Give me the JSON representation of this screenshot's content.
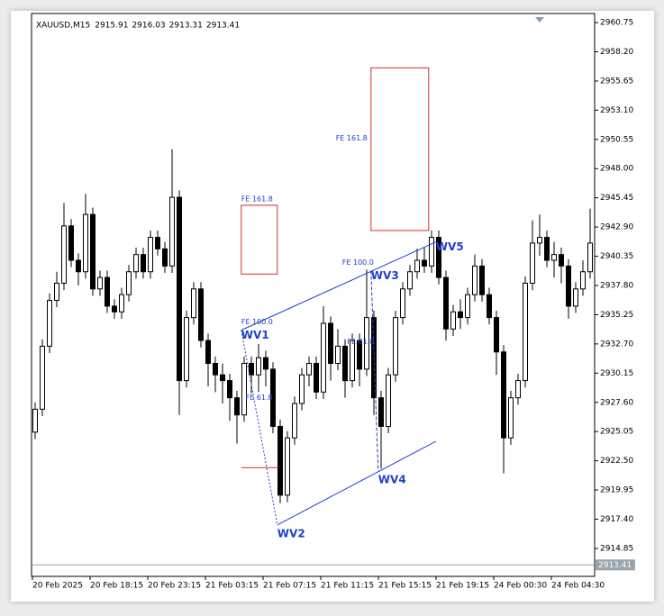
{
  "chart_data": {
    "type": "candlestick",
    "symbol": "XAUUSD,M15",
    "header_values": [
      2915.91,
      2916.03,
      2913.31,
      2913.41
    ],
    "categories": [
      "20 Feb 2025",
      null,
      null,
      null,
      null,
      null,
      null,
      null,
      "20 Feb 18:15",
      null,
      null,
      null,
      null,
      null,
      null,
      null,
      "20 Feb 23:15",
      null,
      null,
      null,
      null,
      null,
      null,
      null,
      "21 Feb 03:15",
      null,
      null,
      null,
      null,
      null,
      null,
      null,
      "21 Feb 07:15",
      null,
      null,
      null,
      null,
      null,
      null,
      null,
      "21 Feb 11:15",
      null,
      null,
      null,
      null,
      null,
      null,
      null,
      "21 Feb 15:15",
      null,
      null,
      null,
      null,
      null,
      null,
      null,
      "21 Feb 19:15",
      null,
      null,
      null,
      null,
      null,
      null,
      null,
      "24 Feb 00:30",
      null,
      null,
      null,
      null,
      null,
      null,
      null,
      "24 Feb 04:30",
      null,
      null,
      null,
      null,
      null
    ],
    "open": [
      2925.0,
      2927.0,
      2932.5,
      2936.5,
      2938.0,
      2943.0,
      2940.0,
      2939.0,
      2944.0,
      2937.5,
      2938.5,
      2936.0,
      2935.5,
      2937.0,
      2939.0,
      2940.5,
      2939.0,
      2942.0,
      2941.0,
      2939.5,
      2945.5,
      2929.5,
      2935.0,
      2937.5,
      2933.0,
      2931.0,
      2930.0,
      2929.5,
      2928.0,
      2926.5,
      2931.0,
      2930.0,
      2931.5,
      2930.5,
      2925.5,
      2919.5,
      2924.5,
      2927.5,
      2930.0,
      2931.0,
      2928.5,
      2934.5,
      2931.0,
      2932.5,
      2929.5,
      2933.0,
      2930.5,
      2935.0,
      2928.0,
      2925.5,
      2930.0,
      2935.0,
      2937.5,
      2939.0,
      2940.0,
      2939.5,
      2942.0,
      2938.5,
      2934.0,
      2935.5,
      2935.0,
      2937.0,
      2939.5,
      2937.0,
      2935.0,
      2932.0,
      2924.5,
      2928.0,
      2929.5,
      2938.0,
      2941.5,
      2942.0,
      2940.0,
      2940.5,
      2939.5,
      2936.0,
      2937.5,
      2939.0
    ],
    "high": [
      2927.6,
      2933.1,
      2937.1,
      2939.0,
      2945.0,
      2943.6,
      2940.6,
      2945.8,
      2944.6,
      2939.1,
      2939.1,
      2936.6,
      2937.6,
      2939.6,
      2941.1,
      2941.1,
      2942.6,
      2942.6,
      2941.6,
      2949.7,
      2946.1,
      2935.6,
      2938.1,
      2938.1,
      2933.6,
      2931.6,
      2931.0,
      2930.1,
      2928.6,
      2931.6,
      2931.6,
      2932.7,
      2932.1,
      2931.1,
      2926.1,
      2925.1,
      2928.1,
      2930.6,
      2931.6,
      2931.6,
      2936.0,
      2935.1,
      2934.0,
      2933.1,
      2933.6,
      2933.6,
      2939.2,
      2935.6,
      2928.6,
      2930.6,
      2935.6,
      2938.1,
      2939.6,
      2941.0,
      2941.1,
      2942.6,
      2942.6,
      2939.1,
      2936.1,
      2936.6,
      2937.6,
      2940.5,
      2940.1,
      2937.6,
      2935.6,
      2932.6,
      2928.6,
      2930.1,
      2938.6,
      2943.5,
      2944.0,
      2942.6,
      2941.6,
      2941.1,
      2940.1,
      2938.1,
      2940.0,
      2944.5
    ],
    "low": [
      2924.4,
      2926.4,
      2931.9,
      2935.9,
      2937.4,
      2939.4,
      2937.8,
      2938.4,
      2936.9,
      2936.9,
      2935.4,
      2934.9,
      2934.9,
      2936.4,
      2938.4,
      2938.4,
      2938.4,
      2940.4,
      2938.9,
      2938.9,
      2926.5,
      2928.9,
      2934.4,
      2932.4,
      2929.0,
      2928.5,
      2927.5,
      2926.0,
      2924.0,
      2925.9,
      2928.4,
      2928.5,
      2929.0,
      2924.9,
      2918.8,
      2918.9,
      2923.9,
      2926.9,
      2929.0,
      2927.9,
      2927.9,
      2929.5,
      2930.4,
      2928.0,
      2928.9,
      2929.0,
      2929.9,
      2926.5,
      2921.8,
      2924.9,
      2929.4,
      2934.4,
      2936.9,
      2938.4,
      2938.9,
      2938.9,
      2937.9,
      2933.0,
      2933.4,
      2934.0,
      2934.4,
      2936.4,
      2936.4,
      2934.4,
      2930.0,
      2921.4,
      2923.9,
      2927.4,
      2928.9,
      2937.4,
      2940.4,
      2939.4,
      2938.5,
      2938.0,
      2934.9,
      2935.4,
      2936.9,
      2938.4
    ],
    "close": [
      2927.0,
      2932.5,
      2936.5,
      2938.0,
      2943.0,
      2940.0,
      2939.0,
      2944.0,
      2937.5,
      2938.5,
      2936.0,
      2935.5,
      2937.0,
      2939.0,
      2940.5,
      2939.0,
      2942.0,
      2941.0,
      2939.5,
      2945.5,
      2929.5,
      2935.0,
      2937.5,
      2933.0,
      2931.0,
      2930.0,
      2929.5,
      2928.0,
      2926.5,
      2931.0,
      2930.0,
      2931.5,
      2930.5,
      2925.5,
      2919.5,
      2924.5,
      2927.5,
      2930.0,
      2931.0,
      2928.5,
      2934.5,
      2931.0,
      2932.5,
      2929.5,
      2933.0,
      2930.5,
      2935.0,
      2928.0,
      2925.5,
      2930.0,
      2935.0,
      2937.5,
      2939.0,
      2940.0,
      2939.5,
      2942.0,
      2938.5,
      2934.0,
      2935.5,
      2935.0,
      2937.0,
      2939.5,
      2937.0,
      2935.0,
      2932.0,
      2924.5,
      2928.0,
      2929.5,
      2938.0,
      2941.5,
      2942.0,
      2940.0,
      2940.5,
      2939.5,
      2936.0,
      2937.5,
      2939.0,
      2941.5
    ],
    "up_color": "#ffffff",
    "down_color": "#000000",
    "ylim": [
      2912.41,
      2961.54
    ],
    "yticks": [
      2960.75,
      {
        "value": 2958.2,
        "label": "2958.20"
      },
      2955.65,
      {
        "value": 2953.1,
        "label": "2953.10"
      },
      2950.55,
      {
        "value": 2948,
        "label": "2948.00"
      },
      2945.45,
      {
        "value": 2942.9,
        "label": "2942.90"
      },
      2940.35,
      {
        "value": 2937.8,
        "label": "2937.80"
      },
      2935.25,
      {
        "value": 2932.7,
        "label": "2932.70"
      },
      2930.15,
      {
        "value": 2927.6,
        "label": "2927.60"
      },
      2925.05,
      {
        "value": 2922.5,
        "label": "2922.50"
      },
      2919.95,
      {
        "value": 2917.4,
        "label": "2917.40"
      },
      2914.85
    ],
    "last_price": 2913.41,
    "annotation_color": "#1f3fd0",
    "zone_color": "#d62a2a",
    "waves": [
      {
        "label": "WV1",
        "x": 28.6,
        "price": 2933.9
      },
      {
        "label": "WV2",
        "x": 33.6,
        "price": 2916.9
      },
      {
        "label": "WV3",
        "x": 46.6,
        "price": 2939.1
      },
      {
        "label": "WV4",
        "x": 47.6,
        "price": 2921.6
      },
      {
        "label": "WV5",
        "x": 55.6,
        "price": 2941.6
      }
    ],
    "lines": [
      {
        "x": [
          28.6,
          55.6
        ],
        "price": [
          2933.9,
          2941.6
        ],
        "style": "solid"
      },
      {
        "x": [
          33.6,
          55.6
        ],
        "price": [
          2916.9,
          2924.2
        ],
        "style": "solid"
      },
      {
        "x": [
          28.6,
          33.6
        ],
        "price": [
          2933.9,
          2916.9
        ],
        "style": "dotted"
      },
      {
        "x": [
          46.6,
          47.6
        ],
        "price": [
          2939.1,
          2921.6
        ],
        "style": "dashed"
      }
    ],
    "zones": [
      {
        "label": "FE 161.8",
        "x": [
          28.6,
          33.6
        ],
        "price": [
          2938.8,
          2944.8
        ],
        "label_side": "top"
      },
      {
        "label": "FE 161.8",
        "x": [
          46.6,
          54.6
        ],
        "price": [
          2942.6,
          2956.8
        ],
        "label_side": "left"
      }
    ],
    "levels": [
      {
        "label": "FE 100.0",
        "x": 28.6,
        "price": 2934.6
      },
      {
        "label": "FE 61.8",
        "x": 29.2,
        "price": 2928.0
      },
      {
        "label": "FE 100.0",
        "x": 42.6,
        "price": 2939.8
      },
      {
        "label": "FE 61.8",
        "x": 43.3,
        "price": 2932.9
      }
    ],
    "stop_line": {
      "x": [
        28.6,
        33.6
      ],
      "price": 2921.9
    }
  }
}
